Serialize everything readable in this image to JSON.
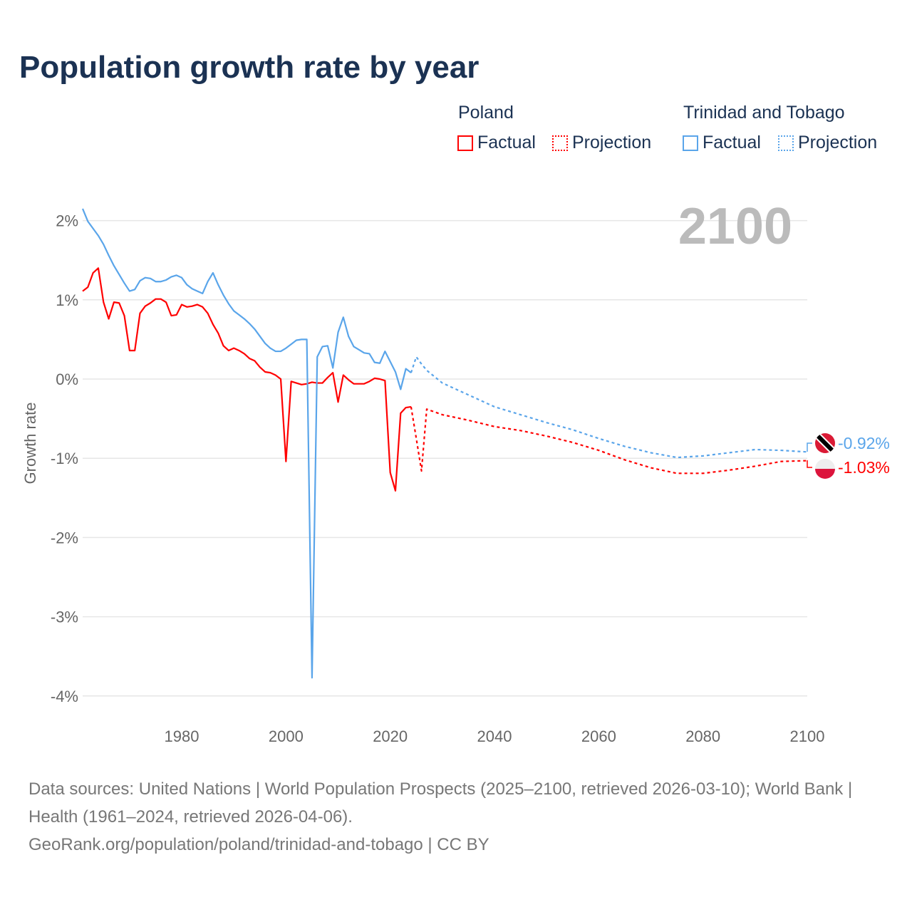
{
  "title": "Population growth rate by year",
  "legend": {
    "groups": [
      {
        "name": "Poland",
        "factual": "Factual",
        "projection": "Projection",
        "color": "#ff0000"
      },
      {
        "name": "Trinidad and Tobago",
        "factual": "Factual",
        "projection": "Projection",
        "color": "#5aa5ea"
      }
    ]
  },
  "year_label": "2100",
  "end_labels": {
    "tt": "-0.92%",
    "pl": "-1.03%"
  },
  "footer": {
    "line1": "Data sources: United Nations | World Population Prospects (2025–2100, retrieved 2026-03-10); World Bank | Health (1961–2024, retrieved 2026-04-06).",
    "line2": "GeoRank.org/population/poland/trinidad-and-tobago | CC BY"
  },
  "chart_data": {
    "type": "line",
    "title": "Population growth rate by year",
    "xlabel": "",
    "ylabel": "Growth rate",
    "xlim": [
      1961,
      2100
    ],
    "ylim": [
      -4,
      2.2
    ],
    "xticks": [
      1980,
      2000,
      2020,
      2040,
      2060,
      2080,
      2100
    ],
    "yticks": [
      {
        "v": 2,
        "l": "2%"
      },
      {
        "v": 1,
        "l": "1%"
      },
      {
        "v": 0,
        "l": "0%"
      },
      {
        "v": -1,
        "l": "-1%"
      },
      {
        "v": -2,
        "l": "-2%"
      },
      {
        "v": -3,
        "l": "-3%"
      },
      {
        "v": -4,
        "l": "-4%"
      }
    ],
    "series": [
      {
        "name": "Poland Factual",
        "color": "#ff0000",
        "dashed": false,
        "x0": 1961,
        "values": [
          1.11,
          1.16,
          1.34,
          1.4,
          0.97,
          0.76,
          0.97,
          0.96,
          0.8,
          0.36,
          0.36,
          0.83,
          0.92,
          0.96,
          1.01,
          1.01,
          0.97,
          0.8,
          0.81,
          0.94,
          0.91,
          0.92,
          0.94,
          0.91,
          0.83,
          0.69,
          0.58,
          0.42,
          0.36,
          0.39,
          0.36,
          0.32,
          0.26,
          0.23,
          0.15,
          0.09,
          0.08,
          0.05,
          0.0,
          -1.04,
          -0.03,
          -0.05,
          -0.07,
          -0.06,
          -0.04,
          -0.05,
          -0.05,
          0.02,
          0.08,
          -0.29,
          0.05,
          -0.01,
          -0.06,
          -0.06,
          -0.06,
          -0.03,
          0.01,
          0.0,
          -0.02,
          -1.18,
          -1.41,
          -0.43,
          -0.36,
          -0.35
        ]
      },
      {
        "name": "Poland Projection",
        "color": "#ff0000",
        "dashed": true,
        "points": [
          [
            2024,
            -0.35
          ],
          [
            2025,
            -0.75
          ],
          [
            2026,
            -1.16
          ],
          [
            2027,
            -0.38
          ],
          [
            2030,
            -0.45
          ],
          [
            2035,
            -0.52
          ],
          [
            2040,
            -0.6
          ],
          [
            2045,
            -0.65
          ],
          [
            2050,
            -0.72
          ],
          [
            2055,
            -0.8
          ],
          [
            2060,
            -0.9
          ],
          [
            2065,
            -1.02
          ],
          [
            2070,
            -1.12
          ],
          [
            2075,
            -1.19
          ],
          [
            2080,
            -1.19
          ],
          [
            2085,
            -1.15
          ],
          [
            2090,
            -1.1
          ],
          [
            2095,
            -1.04
          ],
          [
            2100,
            -1.03
          ]
        ]
      },
      {
        "name": "Trinidad and Tobago Factual",
        "color": "#5aa5ea",
        "dashed": false,
        "x0": 1961,
        "values": [
          2.15,
          1.99,
          1.9,
          1.81,
          1.7,
          1.56,
          1.43,
          1.32,
          1.21,
          1.11,
          1.13,
          1.24,
          1.28,
          1.27,
          1.23,
          1.23,
          1.25,
          1.29,
          1.31,
          1.28,
          1.19,
          1.14,
          1.11,
          1.08,
          1.23,
          1.34,
          1.19,
          1.06,
          0.95,
          0.86,
          0.81,
          0.76,
          0.7,
          0.63,
          0.54,
          0.45,
          0.39,
          0.35,
          0.35,
          0.39,
          0.44,
          0.49,
          0.5,
          0.5,
          -3.77,
          0.28,
          0.41,
          0.42,
          0.14,
          0.59,
          0.78,
          0.54,
          0.41,
          0.37,
          0.33,
          0.32,
          0.21,
          0.2,
          0.35,
          0.22,
          0.09,
          -0.13,
          0.13,
          0.08
        ]
      },
      {
        "name": "Trinidad and Tobago Projection",
        "color": "#5aa5ea",
        "dashed": true,
        "points": [
          [
            2024,
            0.08
          ],
          [
            2025,
            0.28
          ],
          [
            2026,
            0.19
          ],
          [
            2027,
            0.11
          ],
          [
            2030,
            -0.05
          ],
          [
            2035,
            -0.2
          ],
          [
            2040,
            -0.35
          ],
          [
            2045,
            -0.45
          ],
          [
            2050,
            -0.55
          ],
          [
            2055,
            -0.64
          ],
          [
            2060,
            -0.75
          ],
          [
            2065,
            -0.85
          ],
          [
            2070,
            -0.93
          ],
          [
            2075,
            -0.99
          ],
          [
            2080,
            -0.97
          ],
          [
            2085,
            -0.93
          ],
          [
            2090,
            -0.89
          ],
          [
            2095,
            -0.9
          ],
          [
            2100,
            -0.92
          ]
        ]
      }
    ]
  }
}
